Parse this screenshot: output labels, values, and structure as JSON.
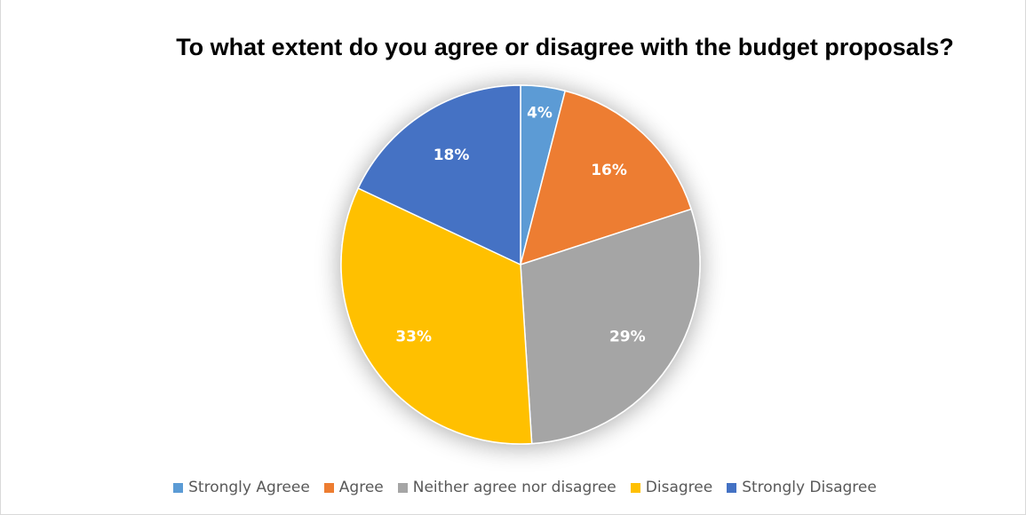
{
  "chart_data": {
    "type": "pie",
    "title": "To what extent do you agree or disagree with the budget proposals?",
    "legend_position": "bottom",
    "slices": [
      {
        "name": "Strongly Agreee",
        "value": 4,
        "label": "4%",
        "color": "#5b9bd5"
      },
      {
        "name": "Agree",
        "value": 16,
        "label": "16%",
        "color": "#ed7d31"
      },
      {
        "name": "Neither agree nor disagree",
        "value": 29,
        "label": "29%",
        "color": "#a5a5a5"
      },
      {
        "name": "Disagree",
        "value": 33,
        "label": "33%",
        "color": "#ffc000"
      },
      {
        "name": "Strongly Disagree",
        "value": 18,
        "label": "18%",
        "color": "#4472c4"
      }
    ]
  }
}
